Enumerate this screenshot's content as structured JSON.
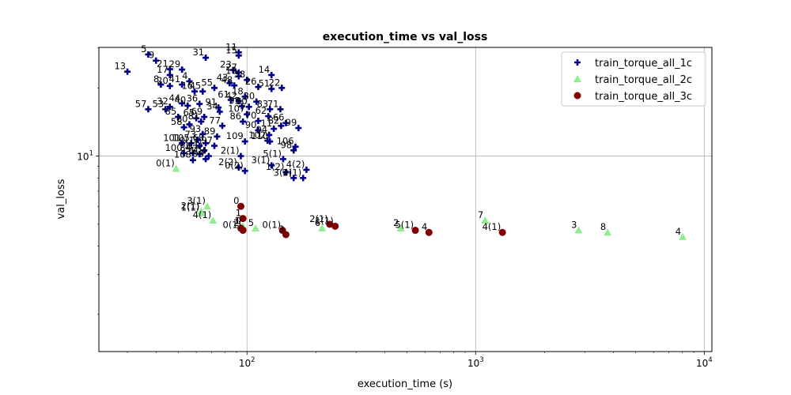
{
  "chart_data": {
    "type": "scatter",
    "title": "execution_time vs val_loss",
    "xlabel": "execution_time (s)",
    "ylabel": "val_loss",
    "xscale": "log",
    "yscale": "log",
    "xlim": [
      22.5,
      10800
    ],
    "ylim": [
      1.37,
      30.2
    ],
    "x_ticks": [
      {
        "value": 100,
        "base": "10",
        "exp": "2"
      },
      {
        "value": 1000,
        "base": "10",
        "exp": "3"
      },
      {
        "value": 10000,
        "base": "10",
        "exp": "4"
      }
    ],
    "y_ticks": [
      {
        "value": 10,
        "base": "10",
        "exp": "1"
      }
    ],
    "grid": true,
    "legend_position": "top-right",
    "series": [
      {
        "name": "train_torque_all_1c",
        "color": "#00008b",
        "marker": "plus",
        "points": [
          {
            "x": 37,
            "y": 28.1,
            "label": "5"
          },
          {
            "x": 40,
            "y": 26.4,
            "label": "9"
          },
          {
            "x": 30,
            "y": 23.6,
            "label": "13"
          },
          {
            "x": 46,
            "y": 24.2,
            "label": "21"
          },
          {
            "x": 52,
            "y": 24.1,
            "label": "29"
          },
          {
            "x": 46,
            "y": 22.8,
            "label": "17"
          },
          {
            "x": 42,
            "y": 20.7,
            "label": "8"
          },
          {
            "x": 46,
            "y": 20.4,
            "label": "20"
          },
          {
            "x": 52,
            "y": 20.7,
            "label": "41"
          },
          {
            "x": 56,
            "y": 21.4,
            "label": "4"
          },
          {
            "x": 59,
            "y": 19.3,
            "label": "16"
          },
          {
            "x": 64,
            "y": 19.3,
            "label": "45"
          },
          {
            "x": 66,
            "y": 27.2,
            "label": "31"
          },
          {
            "x": 92,
            "y": 28.7,
            "label": "11"
          },
          {
            "x": 92,
            "y": 27.8,
            "label": "15"
          },
          {
            "x": 87,
            "y": 24.0,
            "label": "23"
          },
          {
            "x": 92,
            "y": 23.4,
            "label": "27"
          },
          {
            "x": 92,
            "y": 22.5,
            "label": "19"
          },
          {
            "x": 128,
            "y": 22.8,
            "label": "14"
          },
          {
            "x": 100,
            "y": 21.7,
            "label": "38"
          },
          {
            "x": 72,
            "y": 20.0,
            "label": "55"
          },
          {
            "x": 84,
            "y": 21.0,
            "label": "43"
          },
          {
            "x": 88,
            "y": 20.5,
            "label": "48"
          },
          {
            "x": 112,
            "y": 20.2,
            "label": "26"
          },
          {
            "x": 142,
            "y": 20.0,
            "label": "22"
          },
          {
            "x": 128,
            "y": 19.8,
            "label": "51"
          },
          {
            "x": 85,
            "y": 17.7,
            "label": "61"
          },
          {
            "x": 98,
            "y": 18.3,
            "label": "18"
          },
          {
            "x": 92,
            "y": 17.5,
            "label": "42"
          },
          {
            "x": 110,
            "y": 17.4,
            "label": "30"
          },
          {
            "x": 52,
            "y": 17.1,
            "label": "44"
          },
          {
            "x": 55,
            "y": 16.7,
            "label": "40"
          },
          {
            "x": 62,
            "y": 17.0,
            "label": "36"
          },
          {
            "x": 46,
            "y": 16.5,
            "label": "32"
          },
          {
            "x": 37,
            "y": 16.1,
            "label": "57"
          },
          {
            "x": 44,
            "y": 16.1,
            "label": "53"
          },
          {
            "x": 75,
            "y": 16.4,
            "label": "91"
          },
          {
            "x": 76,
            "y": 15.7,
            "label": "34"
          },
          {
            "x": 95,
            "y": 16.6,
            "label": "95"
          },
          {
            "x": 102,
            "y": 16.5,
            "label": "80"
          },
          {
            "x": 100,
            "y": 15.3,
            "label": "107"
          },
          {
            "x": 50,
            "y": 14.9,
            "label": "85"
          },
          {
            "x": 60,
            "y": 14.7,
            "label": "65"
          },
          {
            "x": 65,
            "y": 14.9,
            "label": "69"
          },
          {
            "x": 63,
            "y": 14.2,
            "label": "81"
          },
          {
            "x": 56,
            "y": 13.8,
            "label": "60"
          },
          {
            "x": 126,
            "y": 16.1,
            "label": "83"
          },
          {
            "x": 140,
            "y": 16.1,
            "label": "71"
          },
          {
            "x": 124,
            "y": 15.0,
            "label": "62"
          },
          {
            "x": 96,
            "y": 14.2,
            "label": "86"
          },
          {
            "x": 112,
            "y": 14.3,
            "label": "70"
          },
          {
            "x": 78,
            "y": 13.6,
            "label": "77"
          },
          {
            "x": 148,
            "y": 14.0,
            "label": "66"
          },
          {
            "x": 141,
            "y": 13.6,
            "label": "82"
          },
          {
            "x": 168,
            "y": 13.3,
            "label": "99"
          },
          {
            "x": 131,
            "y": 13.2,
            "label": "11"
          },
          {
            "x": 112,
            "y": 13.0,
            "label": "90"
          },
          {
            "x": 53,
            "y": 13.4,
            "label": "58"
          },
          {
            "x": 64,
            "y": 12.5,
            "label": "93"
          },
          {
            "x": 74,
            "y": 12.2,
            "label": "89"
          },
          {
            "x": 61,
            "y": 11.8,
            "label": "73"
          },
          {
            "x": 66,
            "y": 11.4,
            "label": "68"
          },
          {
            "x": 62,
            "y": 11.1,
            "label": "0(1)"
          },
          {
            "x": 52,
            "y": 11.4,
            "label": "101"
          },
          {
            "x": 57,
            "y": 11.4,
            "label": "105"
          },
          {
            "x": 98,
            "y": 11.6,
            "label": "109"
          },
          {
            "x": 123,
            "y": 11.7,
            "label": "102"
          },
          {
            "x": 126,
            "y": 11.6,
            "label": "110"
          },
          {
            "x": 125,
            "y": 12.4,
            "label": "94"
          },
          {
            "x": 72,
            "y": 11.1,
            "label": "97"
          },
          {
            "x": 163,
            "y": 11.0,
            "label": "106"
          },
          {
            "x": 160,
            "y": 10.6,
            "label": "98"
          },
          {
            "x": 65,
            "y": 10.6,
            "label": "1(1)"
          },
          {
            "x": 53,
            "y": 10.3,
            "label": "100"
          },
          {
            "x": 58,
            "y": 10.3,
            "label": "84"
          },
          {
            "x": 62,
            "y": 10.2,
            "label": "92"
          },
          {
            "x": 68,
            "y": 10.0,
            "label": "104"
          },
          {
            "x": 58,
            "y": 9.6,
            "label": "108"
          },
          {
            "x": 66,
            "y": 9.7,
            "label": "96"
          },
          {
            "x": 94,
            "y": 10.0,
            "label": "2(1)"
          },
          {
            "x": 144,
            "y": 9.7,
            "label": "5(1)"
          },
          {
            "x": 128,
            "y": 9.1,
            "label": "3(1)"
          },
          {
            "x": 92,
            "y": 8.9,
            "label": "2(2)"
          },
          {
            "x": 98,
            "y": 8.6,
            "label": "0(2)"
          },
          {
            "x": 148,
            "y": 8.5,
            "label": "1(2)"
          },
          {
            "x": 182,
            "y": 8.7,
            "label": "4(2)"
          },
          {
            "x": 160,
            "y": 8.0,
            "label": "3(2)"
          },
          {
            "x": 176,
            "y": 8.0,
            "label": "4(1)"
          }
        ]
      },
      {
        "name": "train_torque_all_2c",
        "color": "#90ee90",
        "marker": "triangle",
        "points": [
          {
            "x": 49,
            "y": 8.8,
            "label": "0(1)"
          },
          {
            "x": 67,
            "y": 6.0,
            "label": "3(1)"
          },
          {
            "x": 63,
            "y": 5.7,
            "label": "2(1)"
          },
          {
            "x": 63,
            "y": 5.6,
            "label": "1(1)"
          },
          {
            "x": 71,
            "y": 5.2,
            "label": "4(1)"
          },
          {
            "x": 96,
            "y": 4.9,
            "label": "0"
          },
          {
            "x": 95,
            "y": 4.9,
            "label": "1"
          },
          {
            "x": 109,
            "y": 4.8,
            "label": "5"
          },
          {
            "x": 213,
            "y": 4.8,
            "label": "6"
          },
          {
            "x": 470,
            "y": 4.8,
            "label": "2"
          },
          {
            "x": 1100,
            "y": 5.2,
            "label": "7"
          },
          {
            "x": 2820,
            "y": 4.7,
            "label": "3"
          },
          {
            "x": 3780,
            "y": 4.6,
            "label": "8"
          },
          {
            "x": 8050,
            "y": 4.4,
            "label": "4"
          }
        ]
      },
      {
        "name": "train_torque_all_3c",
        "color": "#800000",
        "marker": "circle",
        "points": [
          {
            "x": 94,
            "y": 6.0,
            "label": "0"
          },
          {
            "x": 96,
            "y": 5.3,
            "label": "1"
          },
          {
            "x": 94,
            "y": 4.8,
            "label": "2"
          },
          {
            "x": 96,
            "y": 4.7,
            "label": "0(1)"
          },
          {
            "x": 143,
            "y": 4.7,
            "label": "0(1)"
          },
          {
            "x": 148,
            "y": 4.5,
            "label": "3"
          },
          {
            "x": 230,
            "y": 5.0,
            "label": "2(1)"
          },
          {
            "x": 243,
            "y": 4.9,
            "label": "1(1)"
          },
          {
            "x": 545,
            "y": 4.7,
            "label": "5(1)"
          },
          {
            "x": 625,
            "y": 4.6,
            "label": "4"
          },
          {
            "x": 1310,
            "y": 4.6,
            "label": "4(1)"
          }
        ]
      }
    ]
  }
}
